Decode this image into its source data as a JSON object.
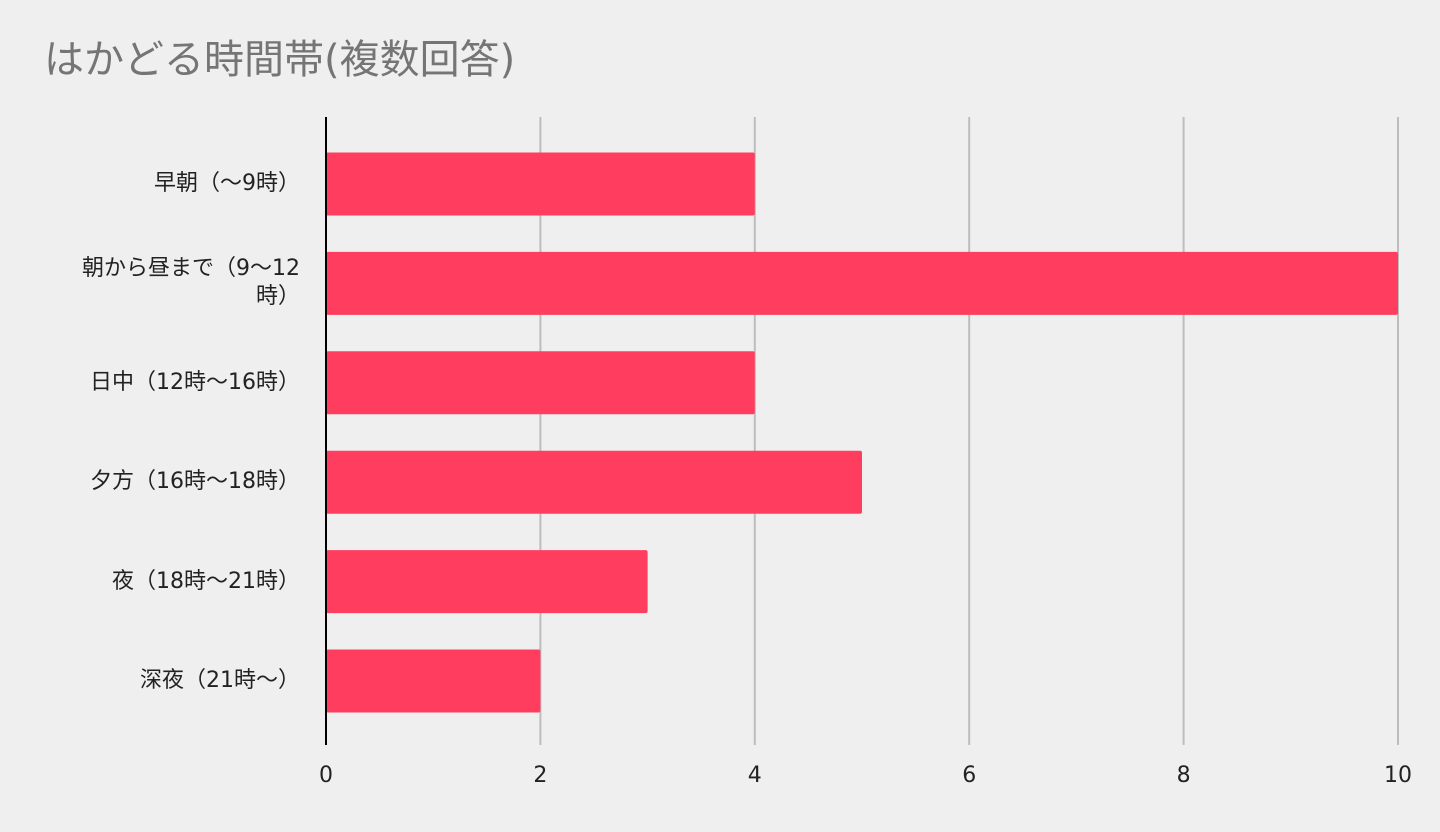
{
  "chart_data": {
    "type": "bar",
    "orientation": "horizontal",
    "title": "はかどる時間帯(複数回答)",
    "categories": [
      "早朝（〜9時）",
      "朝から昼まで（9〜12時）",
      "日中（12時〜16時）",
      "夕方（16時〜18時）",
      "夜（18時〜21時）",
      "深夜（21時〜）"
    ],
    "values": [
      4,
      10,
      4,
      5,
      3,
      2
    ],
    "color": "#ff3d5f",
    "xlim": [
      0,
      10
    ],
    "xticks": [
      0,
      2,
      4,
      6,
      8,
      10
    ],
    "grid": true
  }
}
